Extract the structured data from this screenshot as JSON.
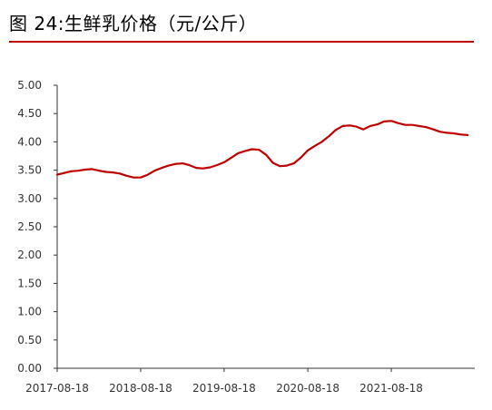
{
  "header": {
    "title": "图 24:生鲜乳价格（元/公斤）"
  },
  "colors": {
    "accent": "#c00000",
    "line": "#c00000",
    "axis": "#333333"
  },
  "chart_data": {
    "type": "line",
    "title": "",
    "xlabel": "",
    "ylabel": "",
    "ylim": [
      0,
      5
    ],
    "yticks": [
      "0.00",
      "0.50",
      "1.00",
      "1.50",
      "2.00",
      "2.50",
      "3.00",
      "3.50",
      "4.00",
      "4.50",
      "5.00"
    ],
    "xticks": [
      "2017-08-18",
      "2018-08-18",
      "2019-08-18",
      "2020-08-18",
      "2021-08-18"
    ],
    "grid": false,
    "legend": "none",
    "series": [
      {
        "color": "#c00000",
        "points": [
          [
            "2017-08-18",
            3.42
          ],
          [
            "2017-09-18",
            3.45
          ],
          [
            "2017-10-18",
            3.48
          ],
          [
            "2017-11-18",
            3.49
          ],
          [
            "2017-12-18",
            3.51
          ],
          [
            "2018-01-18",
            3.52
          ],
          [
            "2018-02-18",
            3.49
          ],
          [
            "2018-03-18",
            3.47
          ],
          [
            "2018-04-18",
            3.46
          ],
          [
            "2018-05-18",
            3.44
          ],
          [
            "2018-06-18",
            3.4
          ],
          [
            "2018-07-18",
            3.37
          ],
          [
            "2018-08-18",
            3.37
          ],
          [
            "2018-09-18",
            3.42
          ],
          [
            "2018-10-18",
            3.49
          ],
          [
            "2018-11-18",
            3.54
          ],
          [
            "2018-12-18",
            3.58
          ],
          [
            "2019-01-18",
            3.61
          ],
          [
            "2019-02-18",
            3.62
          ],
          [
            "2019-03-18",
            3.59
          ],
          [
            "2019-04-18",
            3.54
          ],
          [
            "2019-05-18",
            3.53
          ],
          [
            "2019-06-18",
            3.55
          ],
          [
            "2019-07-18",
            3.59
          ],
          [
            "2019-08-18",
            3.64
          ],
          [
            "2019-09-18",
            3.72
          ],
          [
            "2019-10-18",
            3.8
          ],
          [
            "2019-11-18",
            3.84
          ],
          [
            "2019-12-18",
            3.87
          ],
          [
            "2020-01-18",
            3.86
          ],
          [
            "2020-02-18",
            3.77
          ],
          [
            "2020-03-18",
            3.63
          ],
          [
            "2020-04-18",
            3.57
          ],
          [
            "2020-05-18",
            3.58
          ],
          [
            "2020-06-18",
            3.62
          ],
          [
            "2020-07-18",
            3.72
          ],
          [
            "2020-08-18",
            3.85
          ],
          [
            "2020-09-18",
            3.93
          ],
          [
            "2020-10-18",
            4.0
          ],
          [
            "2020-11-18",
            4.1
          ],
          [
            "2020-12-18",
            4.21
          ],
          [
            "2021-01-18",
            4.28
          ],
          [
            "2021-02-18",
            4.29
          ],
          [
            "2021-03-18",
            4.27
          ],
          [
            "2021-04-18",
            4.22
          ],
          [
            "2021-05-18",
            4.28
          ],
          [
            "2021-06-18",
            4.31
          ],
          [
            "2021-07-18",
            4.36
          ],
          [
            "2021-08-18",
            4.37
          ],
          [
            "2021-09-18",
            4.33
          ],
          [
            "2021-10-18",
            4.3
          ],
          [
            "2021-11-18",
            4.3
          ],
          [
            "2021-12-18",
            4.28
          ],
          [
            "2022-01-18",
            4.26
          ],
          [
            "2022-02-18",
            4.22
          ],
          [
            "2022-03-18",
            4.18
          ],
          [
            "2022-04-18",
            4.16
          ],
          [
            "2022-05-18",
            4.15
          ],
          [
            "2022-06-18",
            4.13
          ],
          [
            "2022-07-18",
            4.12
          ]
        ]
      }
    ]
  }
}
